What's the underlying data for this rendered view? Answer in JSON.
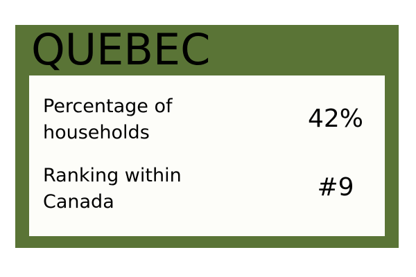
{
  "card": {
    "title": "QUEBEC",
    "background_color": "#5a7436",
    "panel_color": "#fdfdf9"
  },
  "stats": [
    {
      "label": "Percentage of households",
      "value": "42%"
    },
    {
      "label": "Ranking within Canada",
      "value": "#9"
    }
  ]
}
